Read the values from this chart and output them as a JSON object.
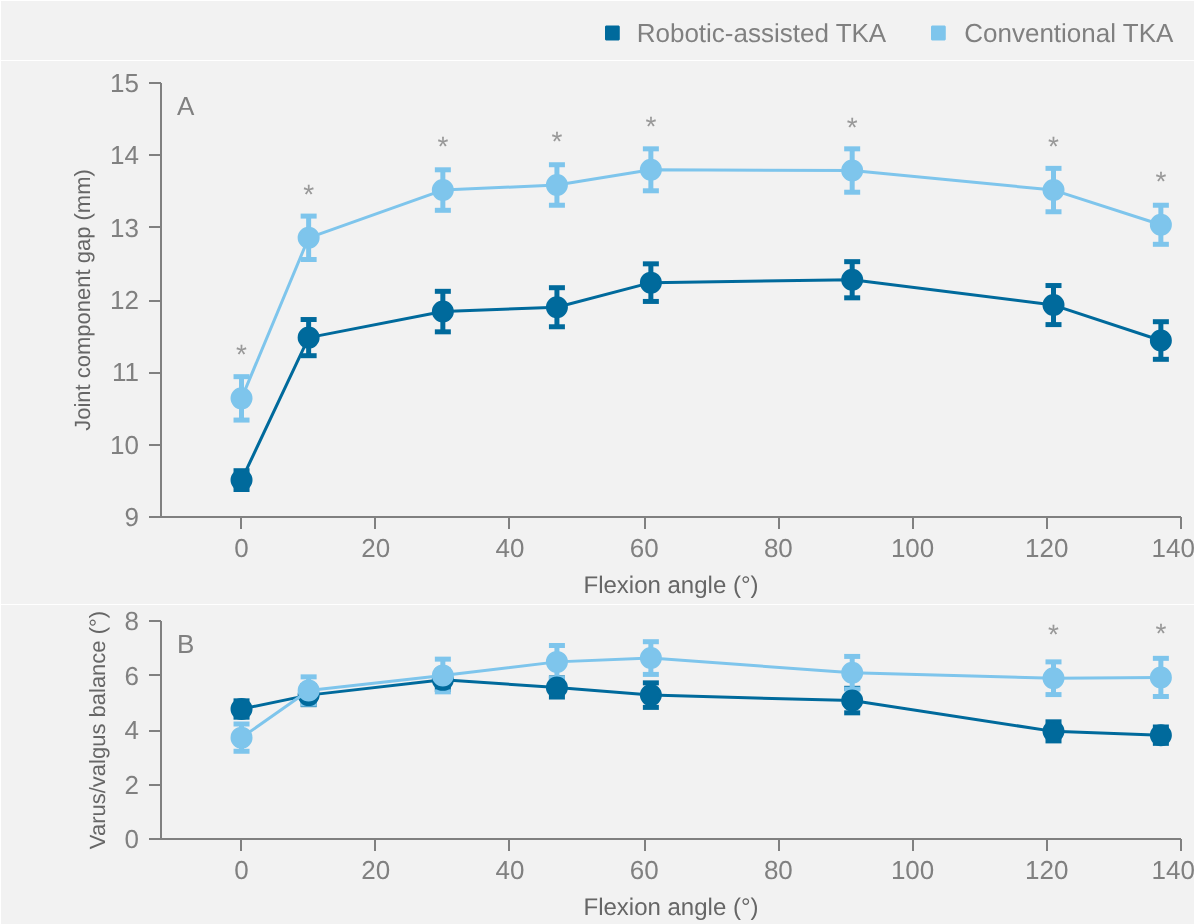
{
  "chart_data": [
    {
      "type": "line",
      "xlabel": "Flexion angle (°)",
      "ylabel": "Joint component gap (mm)",
      "x": [
        0,
        10,
        30,
        47,
        61,
        91,
        121,
        137
      ],
      "xlim": [
        -12,
        140
      ],
      "xticks": [
        0,
        20,
        40,
        60,
        80,
        100,
        120,
        140
      ],
      "ylim": [
        9,
        15
      ],
      "yticks": [
        9,
        10,
        11,
        12,
        13,
        14,
        15
      ],
      "grid": false,
      "legend": "top right",
      "marker": "circle",
      "line_style": "solid",
      "series": [
        {
          "name": "Robotic-assisted TKA",
          "color": "#006a9c",
          "values": [
            9.51,
            11.48,
            11.84,
            11.9,
            12.24,
            12.28,
            11.93,
            11.44
          ],
          "errors": [
            0.13,
            0.25,
            0.28,
            0.27,
            0.26,
            0.25,
            0.27,
            0.26
          ]
        },
        {
          "name": "Conventional TKA",
          "color": "#7ec5ec",
          "values": [
            10.64,
            12.86,
            13.52,
            13.59,
            13.8,
            13.79,
            13.52,
            13.04
          ],
          "errors": [
            0.3,
            0.3,
            0.28,
            0.28,
            0.29,
            0.3,
            0.3,
            0.27
          ]
        }
      ],
      "annotations": [
        "A",
        {
          "text": "*",
          "x": 0,
          "y": 10.64
        },
        {
          "text": "*",
          "x": 10,
          "y": 12.86
        },
        {
          "text": "*",
          "x": 30,
          "y": 13.52
        },
        {
          "text": "*",
          "x": 47,
          "y": 13.59
        },
        {
          "text": "*",
          "x": 61,
          "y": 13.8
        },
        {
          "text": "*",
          "x": 91,
          "y": 13.79
        },
        {
          "text": "*",
          "x": 121,
          "y": 13.52
        },
        {
          "text": "*",
          "x": 137,
          "y": 13.04
        }
      ]
    },
    {
      "type": "line",
      "xlabel": "Flexion angle (°)",
      "ylabel": "Varus/valgus balance (°)",
      "x": [
        0,
        10,
        30,
        47,
        61,
        91,
        121,
        137
      ],
      "xlim": [
        -12,
        140
      ],
      "xticks": [
        0,
        20,
        40,
        60,
        80,
        100,
        120,
        140
      ],
      "ylim": [
        0,
        8
      ],
      "yticks": [
        0,
        2,
        4,
        6,
        8
      ],
      "grid": false,
      "marker": "circle",
      "line_style": "solid",
      "series": [
        {
          "color": "#006a9c",
          "values": [
            4.77,
            5.28,
            5.84,
            5.56,
            5.28,
            5.08,
            3.95,
            3.81
          ],
          "errors": [
            0.3,
            0.35,
            0.35,
            0.35,
            0.45,
            0.45,
            0.35,
            0.3
          ]
        },
        {
          "color": "#7ec5ec",
          "values": [
            3.72,
            5.45,
            6.0,
            6.5,
            6.64,
            6.1,
            5.9,
            5.93
          ],
          "errors": [
            0.5,
            0.5,
            0.6,
            0.6,
            0.6,
            0.6,
            0.6,
            0.7
          ]
        }
      ],
      "annotations": [
        "B",
        {
          "text": "*",
          "x": 121,
          "y": 5.9
        },
        {
          "text": "*",
          "x": 137,
          "y": 5.93
        }
      ]
    }
  ]
}
